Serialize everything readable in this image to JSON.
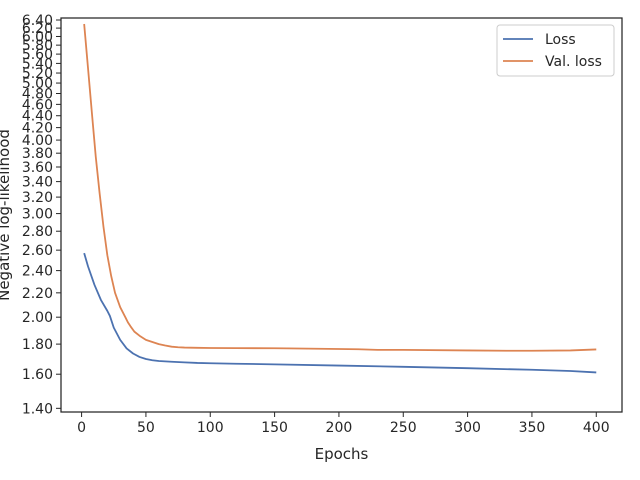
{
  "chart_data": {
    "type": "line",
    "title": "",
    "xlabel": "Epochs",
    "ylabel": "Negative log-likelihood",
    "yscale": "log",
    "xlim": [
      -16,
      420
    ],
    "ylim": [
      1.38,
      6.45
    ],
    "grid": false,
    "legend_position": "top-right",
    "x_ticks": [
      "0",
      "50",
      "100",
      "150",
      "200",
      "250",
      "300",
      "350",
      "400"
    ],
    "y_ticks": [
      "1.40",
      "1.60",
      "1.80",
      "2.00",
      "2.20",
      "2.40",
      "2.60",
      "2.80",
      "3.00",
      "3.20",
      "3.40",
      "3.60",
      "3.80",
      "4.00",
      "4.20",
      "4.40",
      "4.60",
      "4.80",
      "5.00",
      "5.20",
      "5.40",
      "5.60",
      "5.80",
      "6.00",
      "6.20",
      "6.40"
    ],
    "series": [
      {
        "name": "Loss",
        "color": "#4c72b0",
        "x": [
          2,
          5,
          10,
          15,
          20,
          22,
          25,
          30,
          35,
          40,
          45,
          50,
          55,
          60,
          70,
          80,
          90,
          100,
          120,
          150,
          200,
          250,
          300,
          350,
          380,
          400
        ],
        "y": [
          2.57,
          2.44,
          2.27,
          2.14,
          2.05,
          2.01,
          1.92,
          1.83,
          1.77,
          1.735,
          1.712,
          1.698,
          1.69,
          1.685,
          1.68,
          1.676,
          1.672,
          1.67,
          1.667,
          1.663,
          1.655,
          1.647,
          1.638,
          1.628,
          1.62,
          1.611
        ]
      },
      {
        "name": "Val. loss",
        "color": "#dd8452",
        "x": [
          2,
          5,
          8,
          11,
          14,
          17,
          20,
          23,
          26,
          30,
          34,
          36,
          38,
          41,
          45,
          50,
          55,
          60,
          65,
          70,
          75,
          80,
          90,
          100,
          120,
          150,
          160,
          200,
          215,
          230,
          250,
          300,
          330,
          350,
          380,
          400
        ],
        "y": [
          6.3,
          5.3,
          4.45,
          3.75,
          3.25,
          2.85,
          2.55,
          2.35,
          2.2,
          2.08,
          2.0,
          1.96,
          1.93,
          1.89,
          1.86,
          1.83,
          1.815,
          1.8,
          1.79,
          1.782,
          1.778,
          1.776,
          1.774,
          1.773,
          1.772,
          1.771,
          1.77,
          1.766,
          1.764,
          1.76,
          1.76,
          1.756,
          1.754,
          1.754,
          1.756,
          1.763
        ]
      }
    ]
  }
}
